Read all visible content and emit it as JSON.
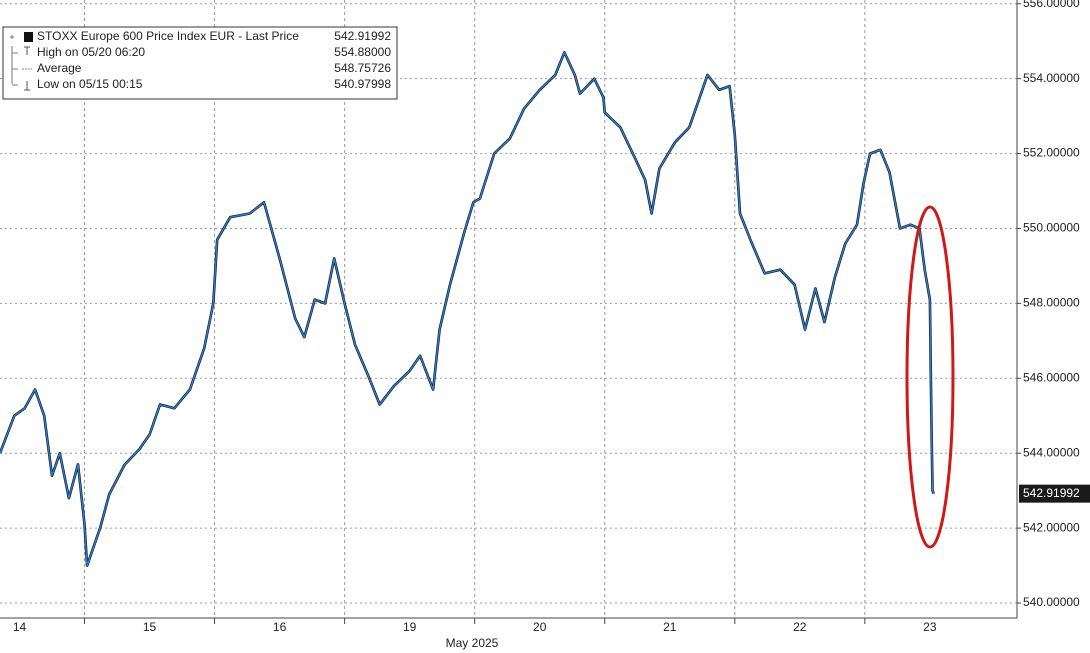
{
  "chart_data": {
    "type": "line",
    "title": "STOXX Europe 600 Price Index EUR - Last Price",
    "xlabel": "May 2025",
    "xlim": [
      0.35,
      8.17
    ],
    "ylim": [
      539.6,
      556.1
    ],
    "xticks": [
      {
        "value": 0.5,
        "label": "14"
      },
      {
        "value": 1.5,
        "label": "15"
      },
      {
        "value": 2.5,
        "label": "16"
      },
      {
        "value": 3.5,
        "label": "19"
      },
      {
        "value": 4.5,
        "label": "20"
      },
      {
        "value": 5.5,
        "label": "21"
      },
      {
        "value": 6.5,
        "label": "22"
      },
      {
        "value": 7.5,
        "label": "23"
      }
    ],
    "x_separators": [
      1,
      2,
      3,
      4,
      5,
      6,
      7
    ],
    "yticks": [
      {
        "value": 540,
        "label": "540.00000"
      },
      {
        "value": 542,
        "label": "542.00000"
      },
      {
        "value": 544,
        "label": "544.00000"
      },
      {
        "value": 546,
        "label": "546.00000"
      },
      {
        "value": 548,
        "label": "548.00000"
      },
      {
        "value": 550,
        "label": "550.00000"
      },
      {
        "value": 552,
        "label": "552.00000"
      },
      {
        "value": 554,
        "label": "554.00000"
      },
      {
        "value": 556,
        "label": "556.00000"
      }
    ],
    "grid": true,
    "legend_rows": [
      {
        "label": "STOXX Europe 600 Price Index EUR - Last Price",
        "value": "542.91992"
      },
      {
        "label": "High on 05/20 06:20",
        "value": "554.88000"
      },
      {
        "label": "Average",
        "value": "548.75726"
      },
      {
        "label": "Low on 05/15 00:15",
        "value": "540.97998"
      }
    ],
    "series": [
      {
        "name": "STOXX Europe 600 Price Index EUR",
        "color": "#2a7fd4",
        "x": [
          0.35,
          0.46,
          0.54,
          0.62,
          0.69,
          0.75,
          0.81,
          0.88,
          0.95,
          1.0,
          1.02,
          1.12,
          1.19,
          1.31,
          1.42,
          1.5,
          1.58,
          1.69,
          1.81,
          1.92,
          1.99,
          2.02,
          2.12,
          2.27,
          2.38,
          2.5,
          2.62,
          2.69,
          2.77,
          2.85,
          2.92,
          3.0,
          3.08,
          3.19,
          3.27,
          3.38,
          3.5,
          3.58,
          3.68,
          3.73,
          3.81,
          3.92,
          3.99,
          4.04,
          4.15,
          4.27,
          4.38,
          4.5,
          4.62,
          4.69,
          4.77,
          4.81,
          4.92,
          4.99,
          5.0,
          5.12,
          5.23,
          5.31,
          5.36,
          5.42,
          5.54,
          5.65,
          5.73,
          5.79,
          5.88,
          5.96,
          6.0,
          6.04,
          6.12,
          6.23,
          6.35,
          6.46,
          6.54,
          6.62,
          6.69,
          6.77,
          6.85,
          6.94,
          6.99,
          7.04,
          7.12,
          7.19,
          7.27,
          7.35,
          7.42,
          7.46,
          7.5,
          7.51,
          7.52,
          7.53
        ],
        "values": [
          544.0,
          545.0,
          545.2,
          545.7,
          545.0,
          543.4,
          544.0,
          542.8,
          543.7,
          542.1,
          541.0,
          542.0,
          542.9,
          543.7,
          544.1,
          544.5,
          545.3,
          545.2,
          545.7,
          546.8,
          548.0,
          549.7,
          550.3,
          550.4,
          550.7,
          549.2,
          547.6,
          547.1,
          548.1,
          548.0,
          549.2,
          548.0,
          546.9,
          546.0,
          545.3,
          545.8,
          546.2,
          546.6,
          545.7,
          547.3,
          548.5,
          549.9,
          550.7,
          550.8,
          552.0,
          552.4,
          553.2,
          553.7,
          554.1,
          554.7,
          554.1,
          553.6,
          554.0,
          553.5,
          553.1,
          552.7,
          551.9,
          551.3,
          550.4,
          551.6,
          552.3,
          552.7,
          553.5,
          554.1,
          553.7,
          553.8,
          552.5,
          550.4,
          549.7,
          548.8,
          548.9,
          548.5,
          547.3,
          548.4,
          547.5,
          548.7,
          549.6,
          550.1,
          551.2,
          552.0,
          552.1,
          551.5,
          550.0,
          550.1,
          550.0,
          548.9,
          548.1,
          545.3,
          543.0,
          542.91992
        ]
      }
    ]
  }
}
